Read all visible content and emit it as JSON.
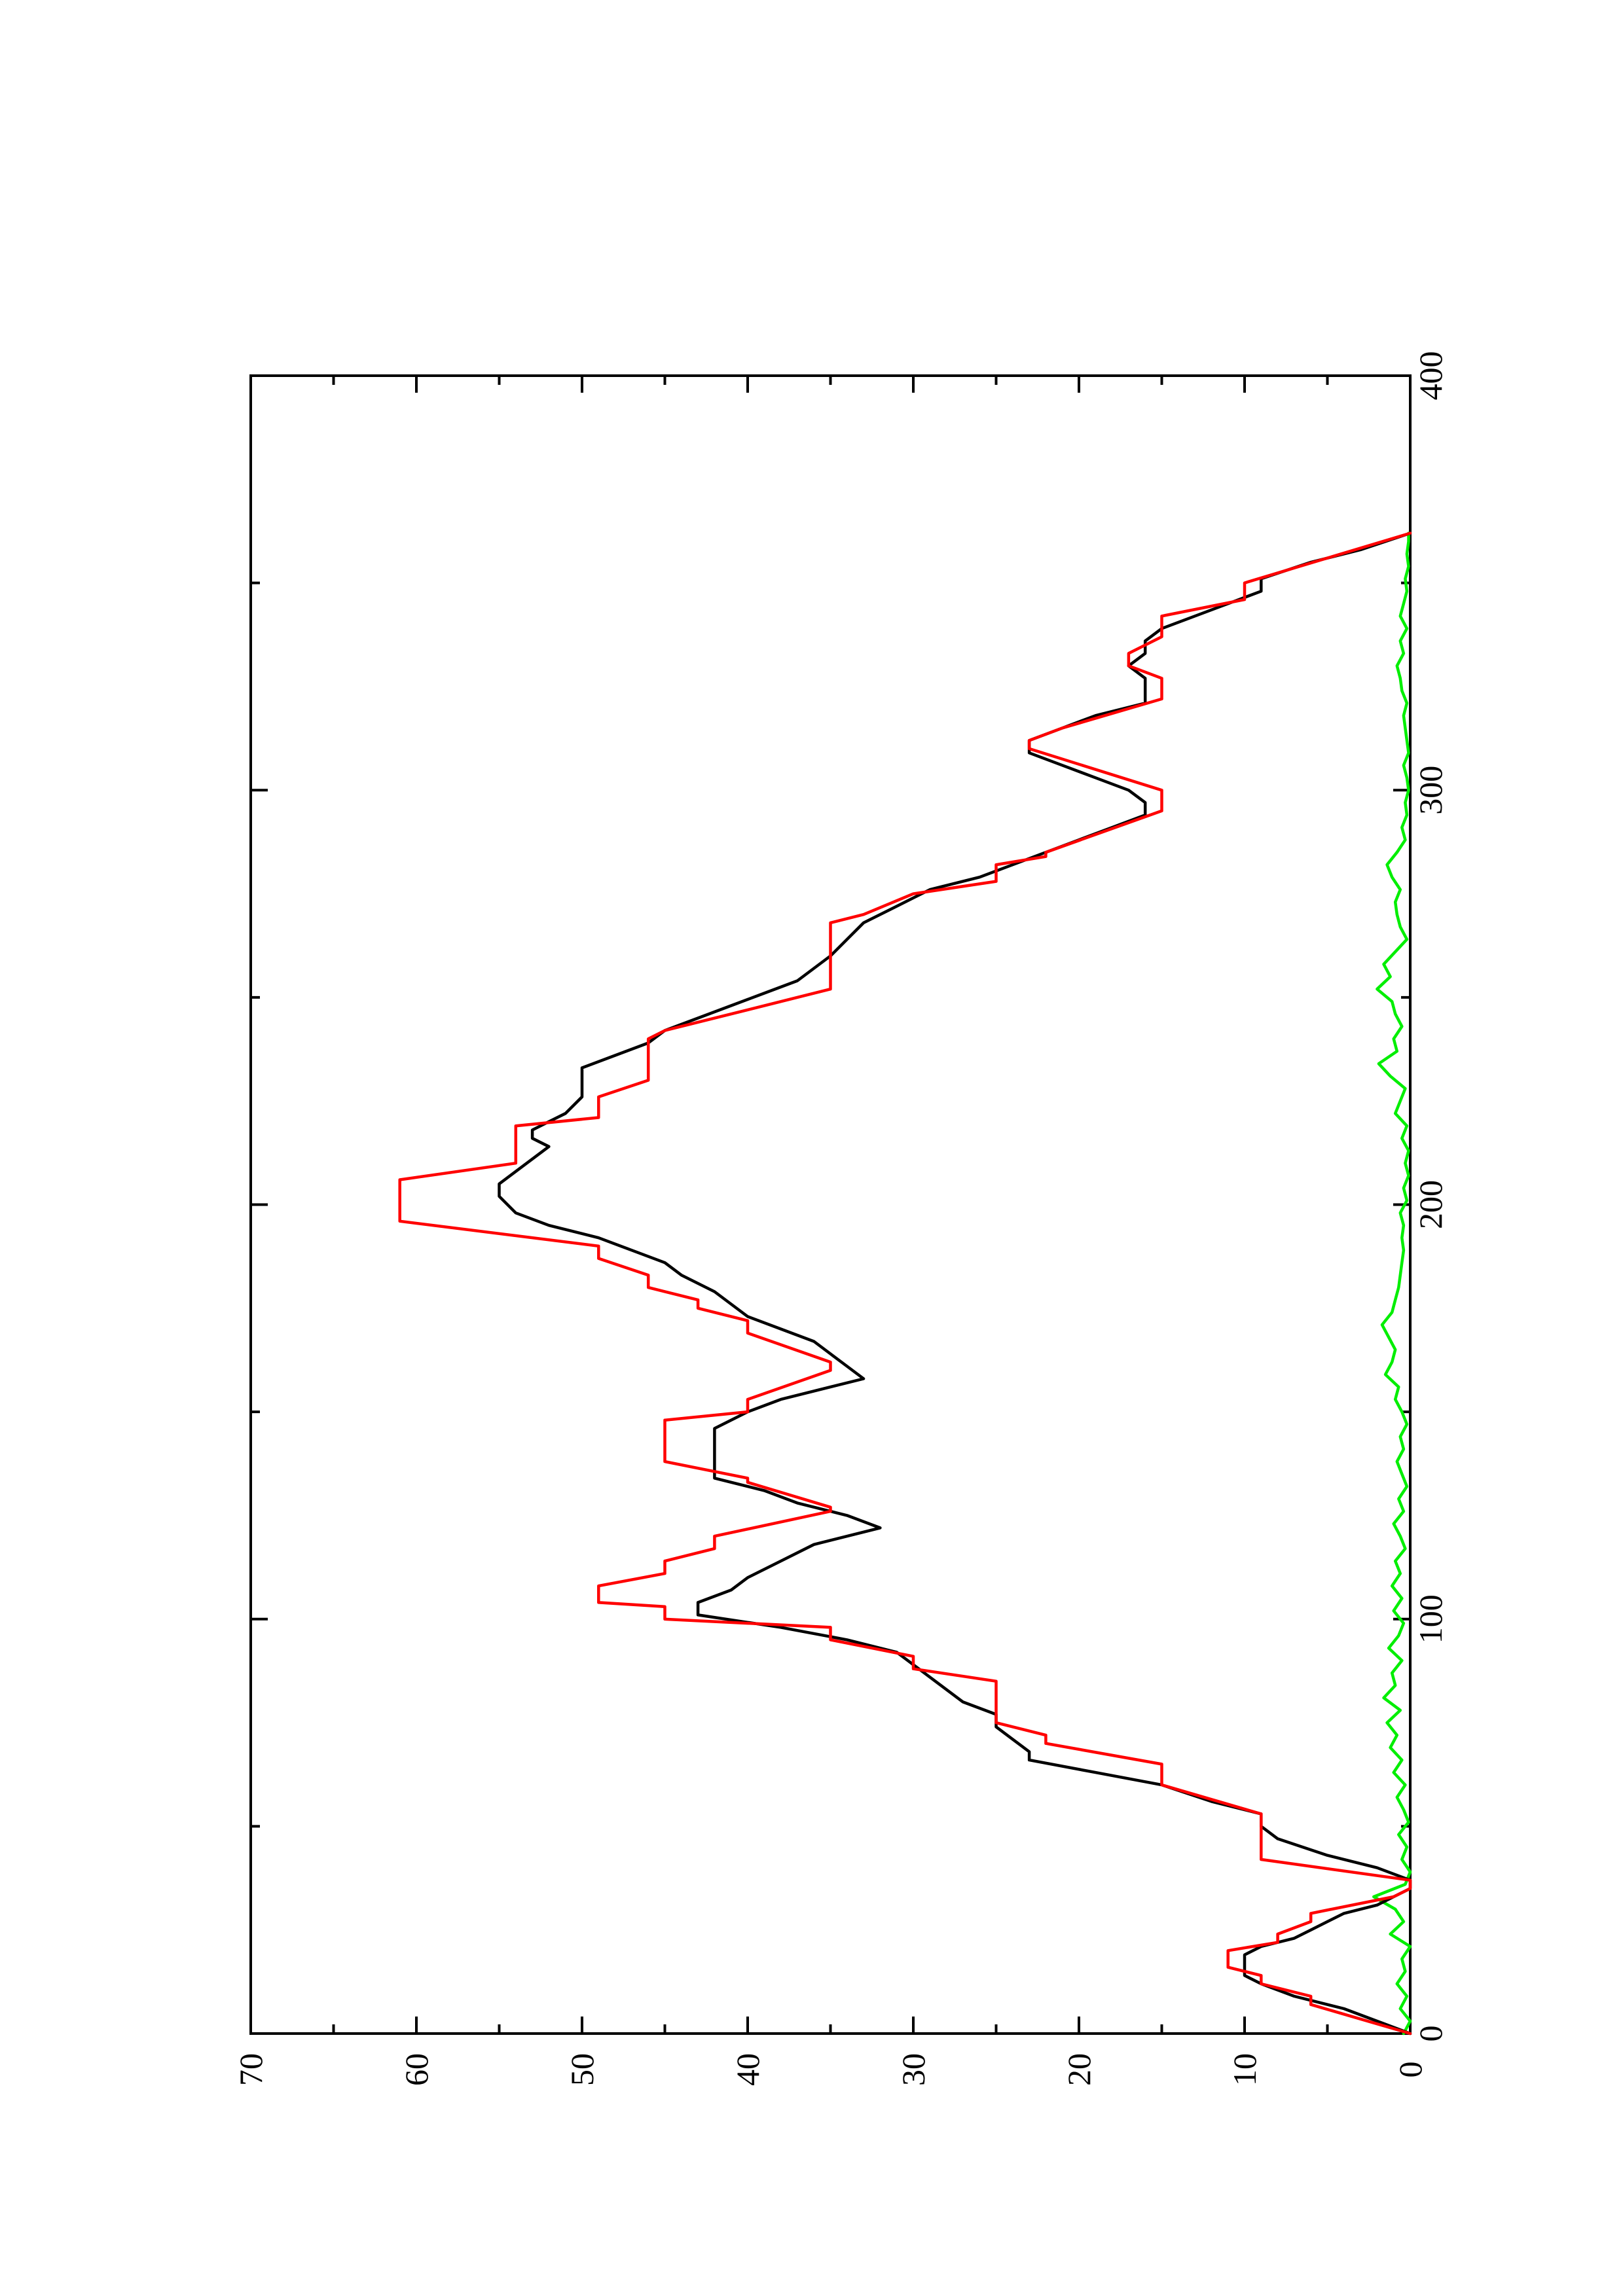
{
  "chart_data": {
    "type": "line",
    "orientation": "rotated-90-ccw",
    "title": "",
    "xlabel": "",
    "ylabel": "",
    "xlim": [
      0,
      400
    ],
    "ylim": [
      0,
      70
    ],
    "x_ticks": [
      0,
      100,
      200,
      300,
      400
    ],
    "x_minor_ticks": [
      50,
      150,
      250,
      350
    ],
    "y_ticks": [
      0,
      10,
      20,
      30,
      40,
      50,
      60,
      70
    ],
    "y_minor_ticks": [
      5,
      15,
      25,
      35,
      45,
      55,
      65
    ],
    "x_tick_labels": [
      "0",
      "100",
      "200",
      "300",
      "400"
    ],
    "y_tick_labels": [
      "0",
      "10",
      "20",
      "30",
      "40",
      "50",
      "60",
      "70"
    ],
    "grid": false,
    "legend": "none",
    "series": [
      {
        "color": "#ff0000",
        "points": [
          [
            0,
            0
          ],
          [
            7,
            6
          ],
          [
            9,
            6
          ],
          [
            12,
            9
          ],
          [
            14,
            9
          ],
          [
            16,
            11
          ],
          [
            20,
            11
          ],
          [
            22,
            8
          ],
          [
            24,
            8
          ],
          [
            27,
            6
          ],
          [
            29,
            6
          ],
          [
            33,
            1
          ],
          [
            35,
            0
          ],
          [
            37,
            0
          ],
          [
            42,
            9
          ],
          [
            53,
            9
          ],
          [
            60,
            15
          ],
          [
            65,
            15
          ],
          [
            70,
            22
          ],
          [
            72,
            22
          ],
          [
            75,
            25
          ],
          [
            85,
            25
          ],
          [
            88,
            30
          ],
          [
            91,
            30
          ],
          [
            95,
            35
          ],
          [
            98,
            35
          ],
          [
            100,
            45
          ],
          [
            103,
            45
          ],
          [
            104,
            49
          ],
          [
            108,
            49
          ],
          [
            111,
            45
          ],
          [
            114,
            45
          ],
          [
            117,
            42
          ],
          [
            120,
            42
          ],
          [
            126,
            35
          ],
          [
            127,
            35
          ],
          [
            133,
            40
          ],
          [
            134,
            40
          ],
          [
            138,
            45
          ],
          [
            148,
            45
          ],
          [
            150,
            40
          ],
          [
            153,
            40
          ],
          [
            160,
            35
          ],
          [
            162,
            35
          ],
          [
            169,
            40
          ],
          [
            172,
            40
          ],
          [
            175,
            43
          ],
          [
            177,
            43
          ],
          [
            180,
            46
          ],
          [
            183,
            46
          ],
          [
            187,
            49
          ],
          [
            190,
            49
          ],
          [
            196,
            61
          ],
          [
            206,
            61
          ],
          [
            210,
            54
          ],
          [
            219,
            54
          ],
          [
            221,
            49
          ],
          [
            226,
            49
          ],
          [
            230,
            46
          ],
          [
            240,
            46
          ],
          [
            242,
            45
          ],
          [
            247,
            40
          ],
          [
            252,
            35
          ],
          [
            268,
            35
          ],
          [
            270,
            33
          ],
          [
            275,
            30
          ],
          [
            278,
            25
          ],
          [
            282,
            25
          ],
          [
            284,
            22
          ],
          [
            285,
            22
          ],
          [
            295,
            15
          ],
          [
            300,
            15
          ],
          [
            310,
            23
          ],
          [
            312,
            23
          ],
          [
            315,
            21
          ],
          [
            322,
            15
          ],
          [
            327,
            15
          ],
          [
            330,
            17
          ],
          [
            333,
            17
          ],
          [
            337,
            15
          ],
          [
            342,
            15
          ],
          [
            346,
            10
          ],
          [
            350,
            10
          ],
          [
            362,
            0
          ]
        ]
      },
      {
        "color": "#000000",
        "points": [
          [
            0,
            0
          ],
          [
            3,
            2
          ],
          [
            6,
            4
          ],
          [
            9,
            7
          ],
          [
            12,
            9
          ],
          [
            14,
            10
          ],
          [
            16,
            10
          ],
          [
            19,
            10
          ],
          [
            21,
            9
          ],
          [
            23,
            7
          ],
          [
            25,
            6
          ],
          [
            27,
            5
          ],
          [
            29,
            4
          ],
          [
            31,
            2
          ],
          [
            33,
            1
          ],
          [
            35,
            0
          ],
          [
            37,
            0
          ],
          [
            40,
            2
          ],
          [
            43,
            5
          ],
          [
            47,
            8
          ],
          [
            50,
            9
          ],
          [
            53,
            9
          ],
          [
            56,
            12
          ],
          [
            60,
            15
          ],
          [
            63,
            19
          ],
          [
            66,
            23
          ],
          [
            68,
            23
          ],
          [
            71,
            24
          ],
          [
            74,
            25
          ],
          [
            77,
            25
          ],
          [
            80,
            27
          ],
          [
            83,
            28
          ],
          [
            86,
            29
          ],
          [
            89,
            30
          ],
          [
            92,
            31
          ],
          [
            95,
            34
          ],
          [
            98,
            38
          ],
          [
            101,
            43
          ],
          [
            104,
            43
          ],
          [
            107,
            41
          ],
          [
            110,
            40
          ],
          [
            114,
            38
          ],
          [
            118,
            36
          ],
          [
            122,
            32
          ],
          [
            125,
            34
          ],
          [
            128,
            37
          ],
          [
            131,
            39
          ],
          [
            134,
            42
          ],
          [
            138,
            42
          ],
          [
            142,
            42
          ],
          [
            146,
            42
          ],
          [
            150,
            40
          ],
          [
            153,
            38
          ],
          [
            156,
            35
          ],
          [
            158,
            33
          ],
          [
            161,
            34
          ],
          [
            164,
            35
          ],
          [
            167,
            36
          ],
          [
            170,
            38
          ],
          [
            173,
            40
          ],
          [
            176,
            41
          ],
          [
            179,
            42
          ],
          [
            183,
            44
          ],
          [
            186,
            45
          ],
          [
            189,
            47
          ],
          [
            192,
            49
          ],
          [
            195,
            52
          ],
          [
            198,
            54
          ],
          [
            202,
            55
          ],
          [
            205,
            55
          ],
          [
            208,
            54
          ],
          [
            211,
            53
          ],
          [
            214,
            52
          ],
          [
            216,
            53
          ],
          [
            218,
            53
          ],
          [
            220,
            52
          ],
          [
            222,
            51
          ],
          [
            226,
            50
          ],
          [
            230,
            50
          ],
          [
            233,
            50
          ],
          [
            236,
            48
          ],
          [
            239,
            46
          ],
          [
            242,
            45
          ],
          [
            245,
            43
          ],
          [
            248,
            41
          ],
          [
            251,
            39
          ],
          [
            254,
            37
          ],
          [
            257,
            36
          ],
          [
            260,
            35
          ],
          [
            264,
            34
          ],
          [
            268,
            33
          ],
          [
            272,
            31
          ],
          [
            276,
            29
          ],
          [
            279,
            26
          ],
          [
            282,
            24
          ],
          [
            285,
            22
          ],
          [
            288,
            20
          ],
          [
            291,
            18
          ],
          [
            294,
            16
          ],
          [
            297,
            16
          ],
          [
            300,
            17
          ],
          [
            303,
            19
          ],
          [
            306,
            21
          ],
          [
            309,
            23
          ],
          [
            312,
            23
          ],
          [
            315,
            21
          ],
          [
            318,
            19
          ],
          [
            321,
            16
          ],
          [
            324,
            16
          ],
          [
            327,
            16
          ],
          [
            330,
            17
          ],
          [
            333,
            16
          ],
          [
            336,
            16
          ],
          [
            339,
            15
          ],
          [
            342,
            13
          ],
          [
            345,
            11
          ],
          [
            348,
            9
          ],
          [
            351,
            9
          ],
          [
            355,
            6
          ],
          [
            358,
            3
          ],
          [
            362,
            0
          ]
        ]
      },
      {
        "color": "#00ee00",
        "points": [
          [
            0,
            0.4
          ],
          [
            3,
            0
          ],
          [
            6,
            0.6
          ],
          [
            9,
            0.2
          ],
          [
            12,
            0.8
          ],
          [
            15,
            0.3
          ],
          [
            18,
            0.5
          ],
          [
            21,
            0
          ],
          [
            24,
            1.2
          ],
          [
            27,
            0.4
          ],
          [
            30,
            0.9
          ],
          [
            33,
            2.2
          ],
          [
            36,
            0.3
          ],
          [
            39,
            0
          ],
          [
            42,
            0.5
          ],
          [
            45,
            0.2
          ],
          [
            48,
            0.7
          ],
          [
            51,
            0.1
          ],
          [
            54,
            0.4
          ],
          [
            57,
            0.8
          ],
          [
            60,
            0.3
          ],
          [
            63,
            1.0
          ],
          [
            66,
            0.5
          ],
          [
            69,
            1.2
          ],
          [
            72,
            0.8
          ],
          [
            75,
            1.4
          ],
          [
            78,
            0.6
          ],
          [
            81,
            1.6
          ],
          [
            84,
            0.9
          ],
          [
            87,
            1.1
          ],
          [
            90,
            0.5
          ],
          [
            93,
            1.3
          ],
          [
            96,
            0.7
          ],
          [
            99,
            0.4
          ],
          [
            102,
            1.0
          ],
          [
            105,
            0.5
          ],
          [
            108,
            1.1
          ],
          [
            111,
            0.6
          ],
          [
            114,
            0.9
          ],
          [
            117,
            0.3
          ],
          [
            120,
            0.6
          ],
          [
            123,
            1.0
          ],
          [
            126,
            0.4
          ],
          [
            129,
            0.7
          ],
          [
            132,
            0.2
          ],
          [
            135,
            0.5
          ],
          [
            138,
            0.8
          ],
          [
            141,
            0.4
          ],
          [
            144,
            0.6
          ],
          [
            147,
            0.2
          ],
          [
            150,
            0.5
          ],
          [
            153,
            0.9
          ],
          [
            156,
            0.7
          ],
          [
            159,
            1.5
          ],
          [
            162,
            1.1
          ],
          [
            165,
            0.9
          ],
          [
            168,
            1.3
          ],
          [
            171,
            1.7
          ],
          [
            174,
            1.1
          ],
          [
            177,
            0.9
          ],
          [
            180,
            0.7
          ],
          [
            183,
            0.6
          ],
          [
            186,
            0.5
          ],
          [
            189,
            0.4
          ],
          [
            192,
            0.5
          ],
          [
            195,
            0.4
          ],
          [
            198,
            0.6
          ],
          [
            201,
            0.2
          ],
          [
            204,
            0.4
          ],
          [
            207,
            0.1
          ],
          [
            210,
            0.3
          ],
          [
            213,
            0.1
          ],
          [
            216,
            0.5
          ],
          [
            219,
            0.2
          ],
          [
            222,
            0.9
          ],
          [
            225,
            0.6
          ],
          [
            228,
            0.3
          ],
          [
            231,
            1.2
          ],
          [
            234,
            1.9
          ],
          [
            237,
            0.8
          ],
          [
            240,
            1.0
          ],
          [
            243,
            0.5
          ],
          [
            246,
            0.9
          ],
          [
            249,
            1.1
          ],
          [
            252,
            2.0
          ],
          [
            255,
            1.2
          ],
          [
            258,
            1.6
          ],
          [
            261,
            0.9
          ],
          [
            264,
            0.2
          ],
          [
            267,
            0.6
          ],
          [
            270,
            0.8
          ],
          [
            273,
            0.9
          ],
          [
            276,
            0.6
          ],
          [
            279,
            1.1
          ],
          [
            282,
            1.4
          ],
          [
            285,
            0.8
          ],
          [
            288,
            0.3
          ],
          [
            291,
            0.5
          ],
          [
            294,
            0.2
          ],
          [
            297,
            0.3
          ],
          [
            300,
            0.1
          ],
          [
            303,
            0.2
          ],
          [
            306,
            0.4
          ],
          [
            309,
            0.1
          ],
          [
            312,
            0.2
          ],
          [
            315,
            0.3
          ],
          [
            318,
            0.4
          ],
          [
            321,
            0.2
          ],
          [
            324,
            0.5
          ],
          [
            327,
            0.6
          ],
          [
            330,
            0.8
          ],
          [
            333,
            0.4
          ],
          [
            336,
            0.6
          ],
          [
            339,
            0.2
          ],
          [
            342,
            0.6
          ],
          [
            345,
            0.4
          ],
          [
            348,
            0.2
          ],
          [
            351,
            0.3
          ],
          [
            354,
            0.1
          ],
          [
            357,
            0.2
          ],
          [
            360,
            0.1
          ],
          [
            362,
            0.1
          ]
        ]
      }
    ]
  }
}
